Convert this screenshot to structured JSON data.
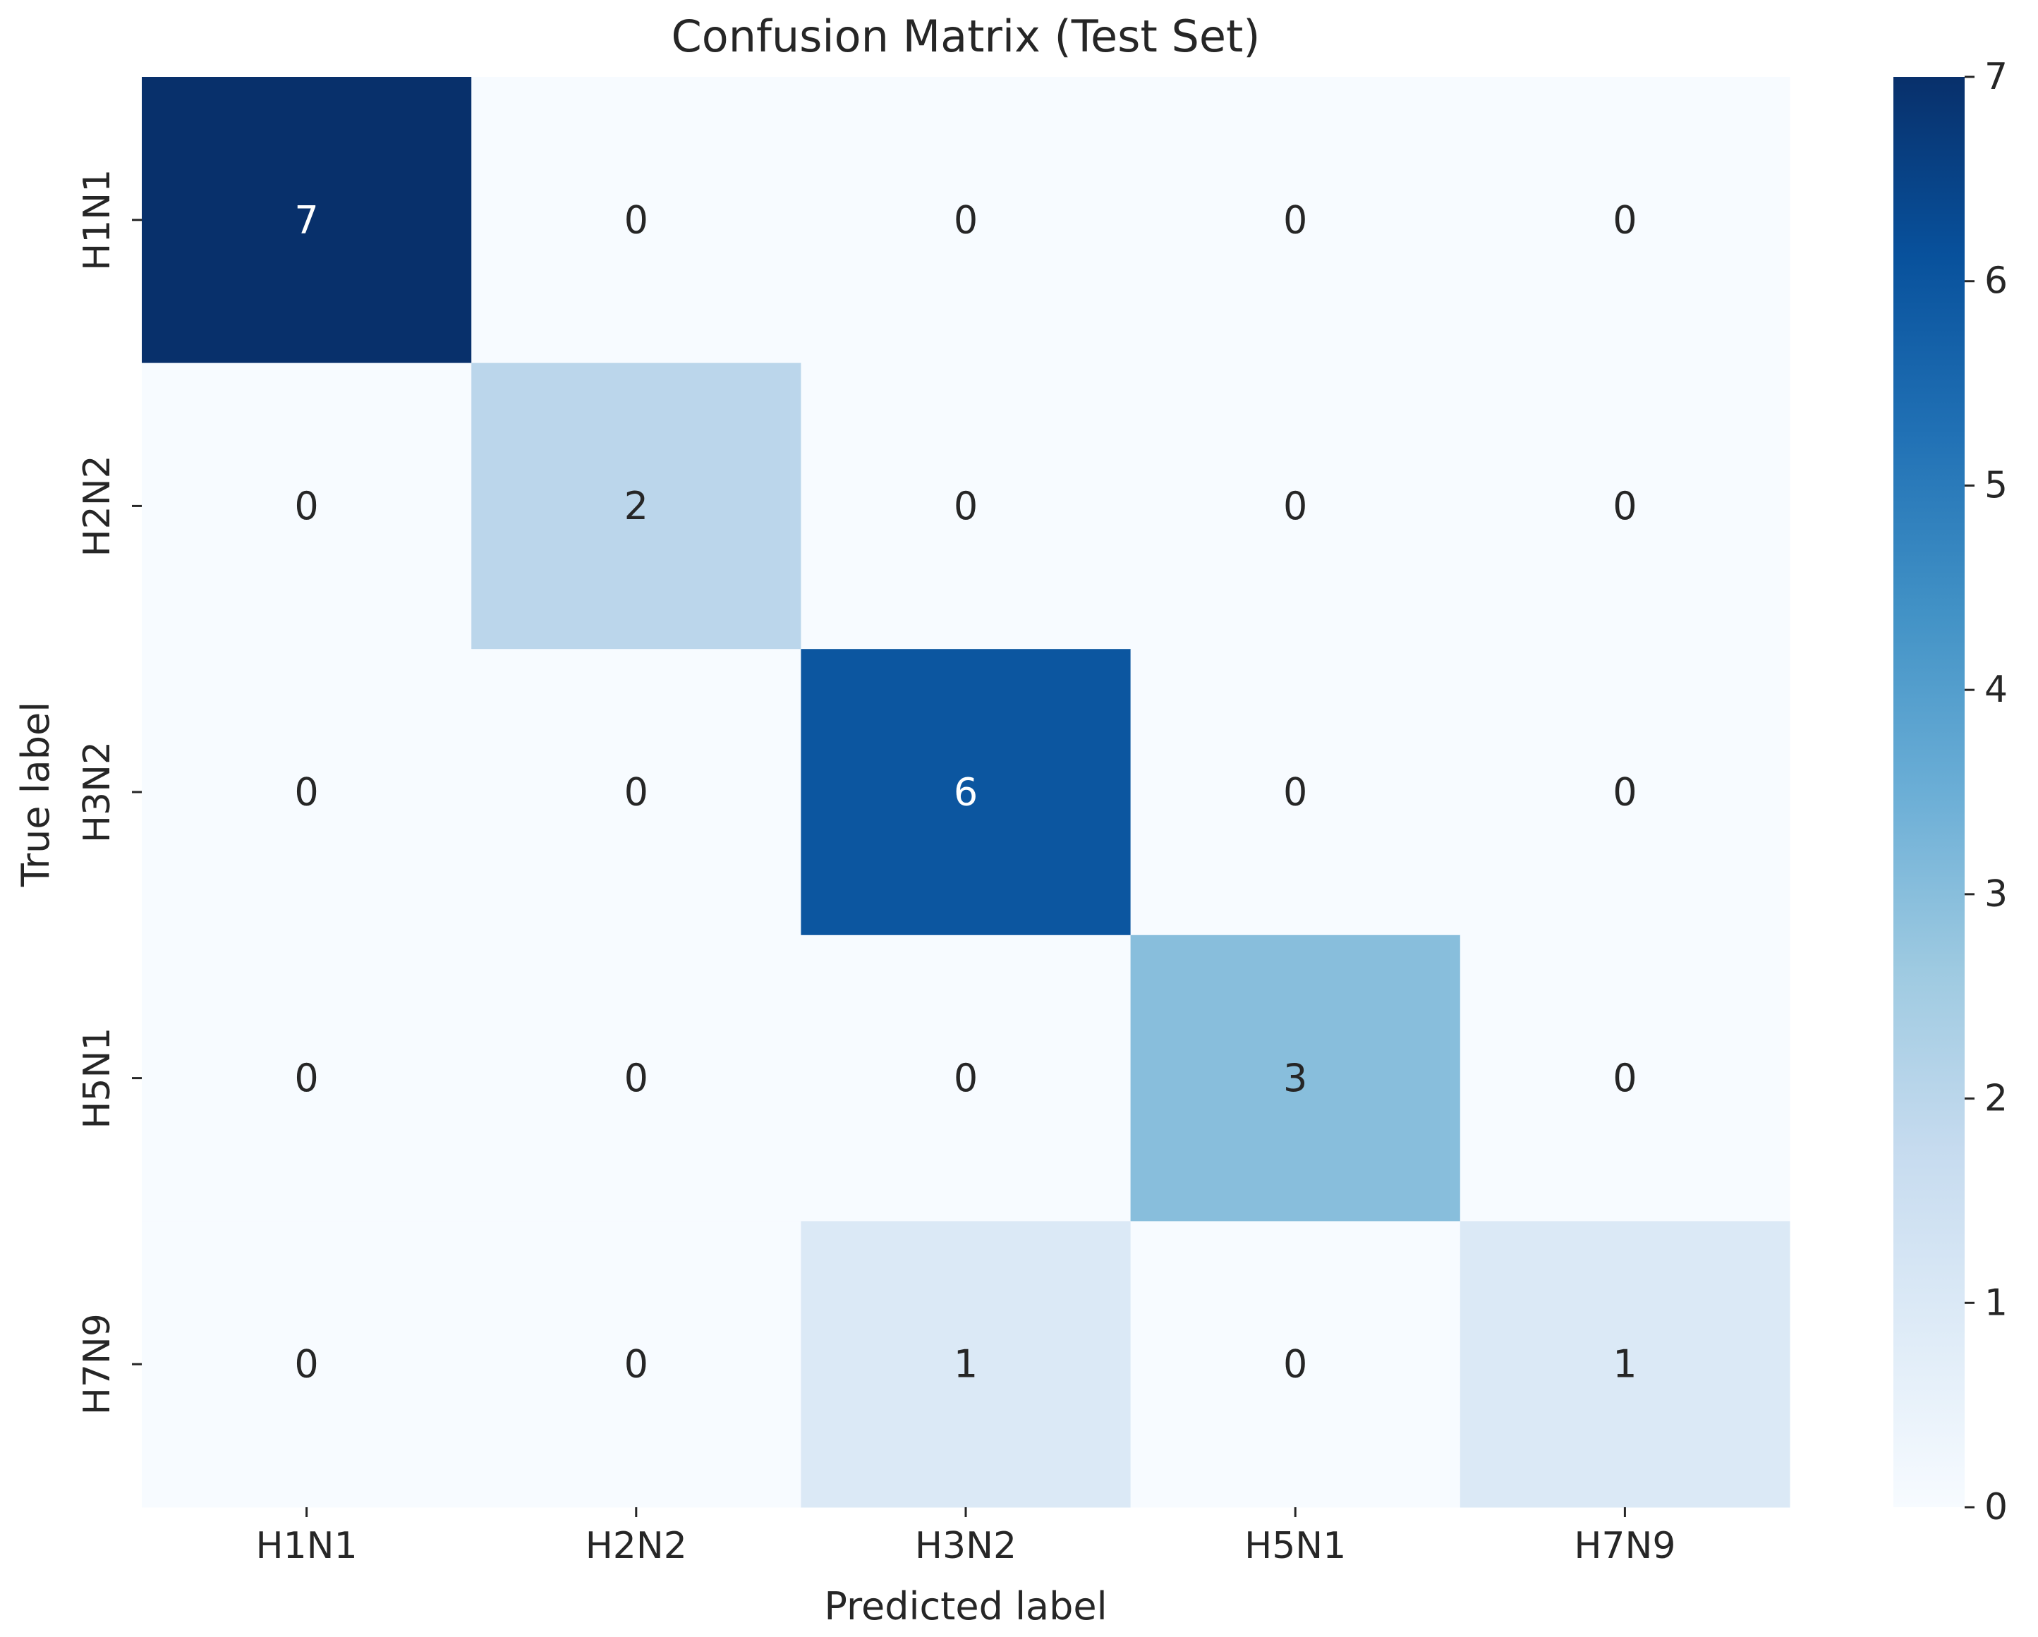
{
  "chart_data": {
    "type": "heatmap",
    "title": "Confusion Matrix (Test Set)",
    "xlabel": "Predicted label",
    "ylabel": "True label",
    "x_categories": [
      "H1N1",
      "H2N2",
      "H3N2",
      "H5N1",
      "H7N9"
    ],
    "y_categories": [
      "H1N1",
      "H2N2",
      "H3N2",
      "H5N1",
      "H7N9"
    ],
    "matrix": [
      [
        7,
        0,
        0,
        0,
        0
      ],
      [
        0,
        2,
        0,
        0,
        0
      ],
      [
        0,
        0,
        6,
        0,
        0
      ],
      [
        0,
        0,
        0,
        3,
        0
      ],
      [
        0,
        0,
        1,
        0,
        1
      ]
    ],
    "colormap": "Blues",
    "vmin": 0,
    "vmax": 7,
    "colorbar_ticks": [
      0,
      1,
      2,
      3,
      4,
      5,
      6,
      7
    ],
    "annotated": true
  },
  "colors": {
    "text": "#262626",
    "annotation_dark": "#262626",
    "annotation_light": "#ffffff",
    "blues_stops": [
      "#f7fbff",
      "#deebf7",
      "#c6dbef",
      "#9ecae1",
      "#6baed6",
      "#4292c6",
      "#2171b5",
      "#08519c",
      "#08306b"
    ]
  }
}
